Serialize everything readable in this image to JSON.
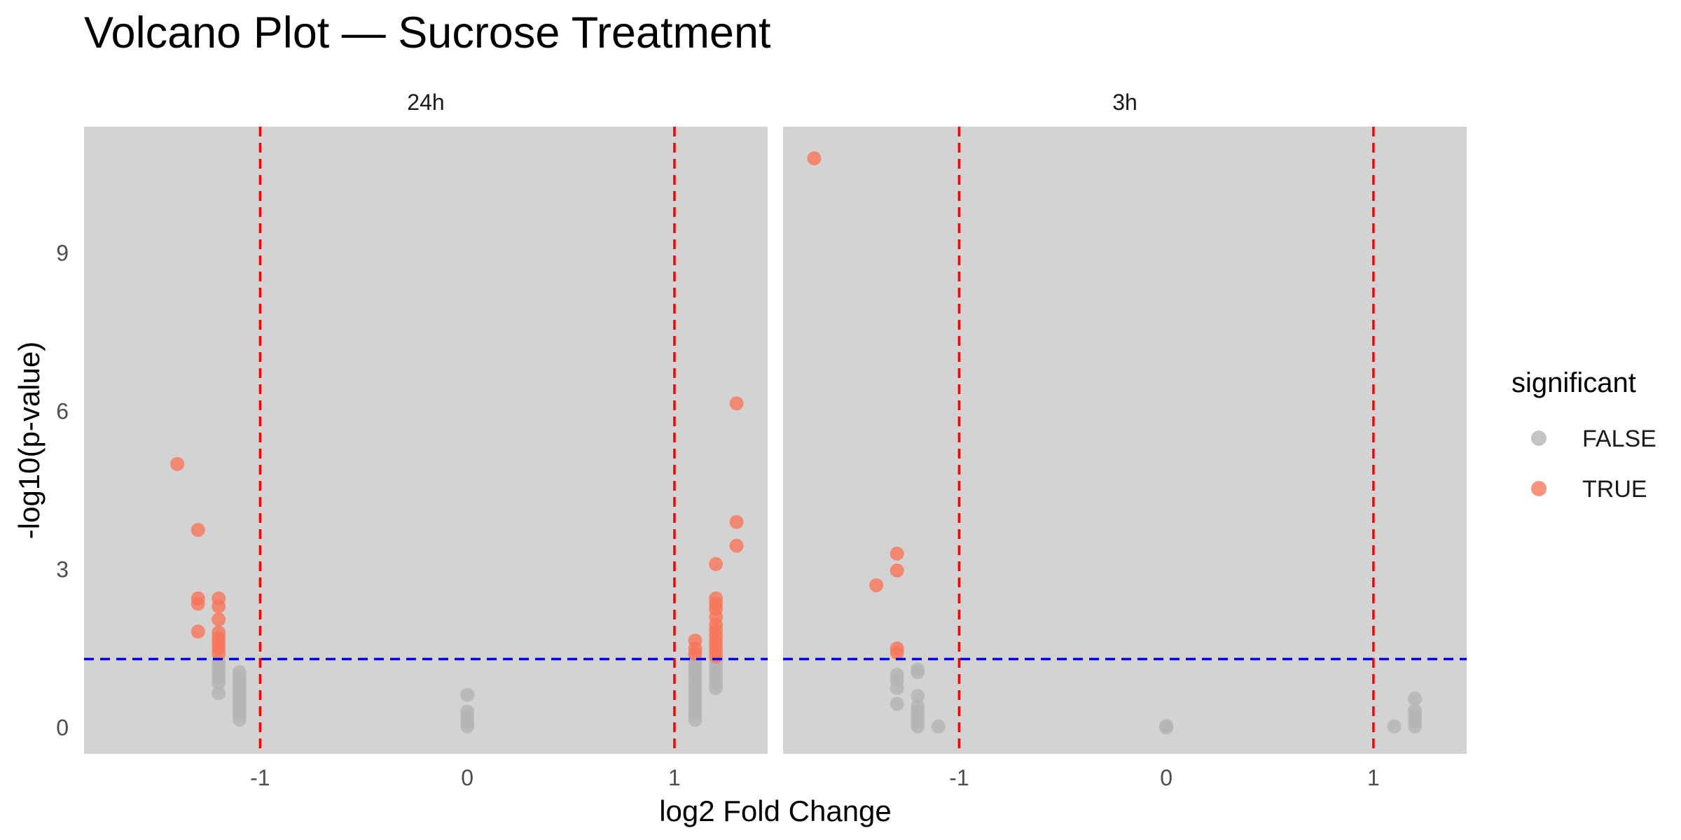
{
  "chart_data": {
    "type": "scatter",
    "title": "Volcano Plot — Sucrose Treatment",
    "xlabel": "log2 Fold Change",
    "ylabel": "-log10(p-value)",
    "xlim": [
      -1.85,
      1.45
    ],
    "ylim": [
      -0.5,
      11.4
    ],
    "x_ticks": [
      -1,
      0,
      1
    ],
    "x_tick_labels": [
      "-1",
      "0",
      "1"
    ],
    "y_ticks": [
      0,
      3,
      6,
      9
    ],
    "y_tick_labels": [
      "0",
      "3",
      "6",
      "9"
    ],
    "fold_change_thresholds": [
      -1,
      1
    ],
    "pvalue_threshold": 1.3,
    "grid": false,
    "panel_background": "#d3d3d3",
    "vline_color": "#ff0000",
    "hline_color": "#0000ff",
    "legend": {
      "title": "significant",
      "position": "right",
      "items": [
        {
          "label": "FALSE",
          "color": "#b3b3b3"
        },
        {
          "label": "TRUE",
          "color": "#fa7357"
        }
      ]
    },
    "panels": [
      {
        "label": "24h",
        "series": [
          {
            "name": "FALSE",
            "color": "#b3b3b3",
            "points": [
              [
                -1.2,
                0.65
              ],
              [
                -1.2,
                0.85
              ],
              [
                -1.2,
                0.95
              ],
              [
                -1.2,
                1.05
              ],
              [
                -1.2,
                1.15
              ],
              [
                -1.2,
                1.25
              ],
              [
                -1.1,
                0.15
              ],
              [
                -1.1,
                0.25
              ],
              [
                -1.1,
                0.35
              ],
              [
                -1.1,
                0.45
              ],
              [
                -1.1,
                0.55
              ],
              [
                -1.1,
                0.65
              ],
              [
                -1.1,
                0.75
              ],
              [
                -1.1,
                0.85
              ],
              [
                -1.1,
                0.95
              ],
              [
                -1.1,
                1.05
              ],
              [
                0,
                0.02
              ],
              [
                0,
                0.1
              ],
              [
                0,
                0.2
              ],
              [
                0,
                0.3
              ],
              [
                0,
                0.62
              ],
              [
                1.1,
                0.15
              ],
              [
                1.1,
                0.25
              ],
              [
                1.1,
                0.35
              ],
              [
                1.1,
                0.45
              ],
              [
                1.1,
                0.55
              ],
              [
                1.1,
                0.65
              ],
              [
                1.1,
                0.75
              ],
              [
                1.1,
                0.85
              ],
              [
                1.1,
                0.95
              ],
              [
                1.1,
                1.05
              ],
              [
                1.1,
                1.15
              ],
              [
                1.1,
                1.25
              ],
              [
                1.1,
                1.35
              ],
              [
                1.2,
                0.75
              ],
              [
                1.2,
                0.85
              ],
              [
                1.2,
                0.95
              ],
              [
                1.2,
                1.05
              ],
              [
                1.2,
                1.15
              ],
              [
                1.2,
                1.25
              ]
            ]
          },
          {
            "name": "TRUE",
            "color": "#fa7357",
            "points": [
              [
                -1.4,
                5.0
              ],
              [
                -1.3,
                3.75
              ],
              [
                -1.3,
                2.45
              ],
              [
                -1.3,
                2.35
              ],
              [
                -1.3,
                1.82
              ],
              [
                -1.2,
                2.45
              ],
              [
                -1.2,
                2.3
              ],
              [
                -1.2,
                2.05
              ],
              [
                -1.2,
                1.8
              ],
              [
                -1.2,
                1.7
              ],
              [
                -1.2,
                1.6
              ],
              [
                -1.2,
                1.5
              ],
              [
                -1.2,
                1.4
              ],
              [
                1.1,
                1.65
              ],
              [
                1.1,
                1.5
              ],
              [
                1.1,
                1.4
              ],
              [
                1.2,
                3.1
              ],
              [
                1.2,
                2.45
              ],
              [
                1.2,
                2.35
              ],
              [
                1.2,
                2.25
              ],
              [
                1.2,
                2.1
              ],
              [
                1.2,
                1.95
              ],
              [
                1.2,
                1.85
              ],
              [
                1.2,
                1.75
              ],
              [
                1.2,
                1.65
              ],
              [
                1.2,
                1.55
              ],
              [
                1.2,
                1.45
              ],
              [
                1.2,
                1.35
              ],
              [
                1.3,
                6.15
              ],
              [
                1.3,
                3.9
              ],
              [
                1.3,
                3.45
              ]
            ]
          }
        ]
      },
      {
        "label": "3h",
        "series": [
          {
            "name": "FALSE",
            "color": "#b3b3b3",
            "points": [
              [
                -1.3,
                0.45
              ],
              [
                -1.3,
                0.75
              ],
              [
                -1.3,
                0.9
              ],
              [
                -1.3,
                1.0
              ],
              [
                -1.2,
                0.02
              ],
              [
                -1.2,
                0.1
              ],
              [
                -1.2,
                0.2
              ],
              [
                -1.2,
                0.3
              ],
              [
                -1.2,
                0.4
              ],
              [
                -1.2,
                0.6
              ],
              [
                -1.2,
                1.05
              ],
              [
                -1.2,
                1.1
              ],
              [
                -1.1,
                0.02
              ],
              [
                0,
                0.0
              ],
              [
                0,
                0.03
              ],
              [
                1.1,
                0.02
              ],
              [
                1.2,
                0.02
              ],
              [
                1.2,
                0.12
              ],
              [
                1.2,
                0.22
              ],
              [
                1.2,
                0.32
              ],
              [
                1.2,
                0.55
              ]
            ]
          },
          {
            "name": "TRUE",
            "color": "#fa7357",
            "points": [
              [
                -1.7,
                10.8
              ],
              [
                -1.4,
                2.7
              ],
              [
                -1.3,
                3.3
              ],
              [
                -1.3,
                2.98
              ],
              [
                -1.3,
                1.5
              ],
              [
                -1.3,
                1.42
              ]
            ]
          }
        ]
      }
    ]
  }
}
